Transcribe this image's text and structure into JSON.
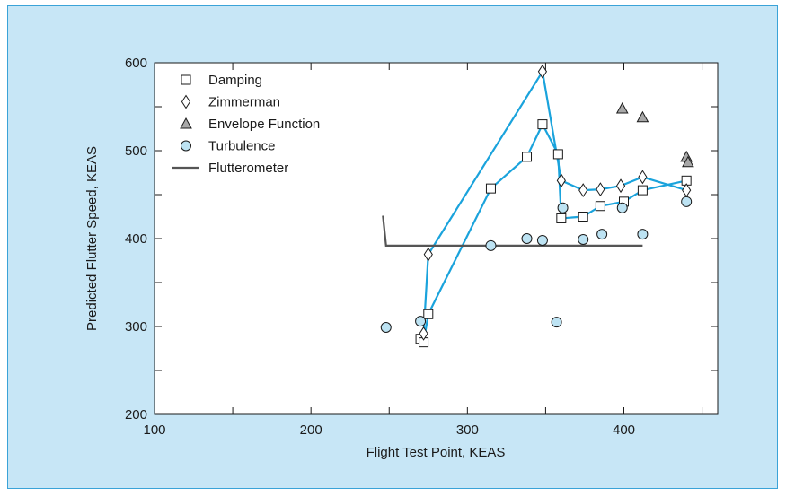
{
  "colors": {
    "background": "#c7e6f6",
    "border": "#3aa3d8",
    "plot_area": "#ffffff",
    "connect_line": "#1aa3dc",
    "flutterometer": "#555555",
    "triangle_fill": "#a8a8a8",
    "circle_fill": "#bde3f3"
  },
  "chart_data": {
    "type": "scatter",
    "xlabel": "Flight Test Point, KEAS",
    "ylabel": "Predicted Flutter Speed, KEAS",
    "xlim": [
      100,
      460
    ],
    "ylim": [
      200,
      600
    ],
    "xticks": [
      100,
      200,
      300,
      400
    ],
    "yticks": [
      200,
      300,
      400,
      500,
      600
    ],
    "legend_position": "top-left",
    "series": [
      {
        "name": "Damping",
        "marker": "square",
        "connected": true,
        "x": [
          270,
          272,
          275,
          315,
          338,
          348,
          358,
          360,
          374,
          385,
          400,
          412,
          440
        ],
        "y": [
          286,
          282,
          314,
          457,
          493,
          530,
          496,
          423,
          425,
          437,
          442,
          455,
          466
        ]
      },
      {
        "name": "Zimmerman",
        "marker": "diamond",
        "connected": true,
        "x": [
          272,
          275,
          348,
          360,
          374,
          385,
          398,
          412,
          440
        ],
        "y": [
          292,
          382,
          590,
          466,
          455,
          456,
          460,
          470,
          455
        ]
      },
      {
        "name": "Envelope Function",
        "marker": "triangle",
        "connected": false,
        "x": [
          399,
          412,
          440,
          441
        ],
        "y": [
          548,
          538,
          493,
          487
        ]
      },
      {
        "name": "Turbulence",
        "marker": "circle",
        "connected": false,
        "x": [
          248,
          270,
          315,
          338,
          348,
          357,
          361,
          374,
          386,
          399,
          412,
          440
        ],
        "y": [
          299,
          306,
          392,
          400,
          398,
          305,
          435,
          399,
          405,
          435,
          405,
          442
        ]
      },
      {
        "name": "Flutterometer",
        "marker": "line",
        "connected": true,
        "x": [
          246,
          248,
          412
        ],
        "y": [
          426,
          392,
          392
        ]
      }
    ]
  }
}
